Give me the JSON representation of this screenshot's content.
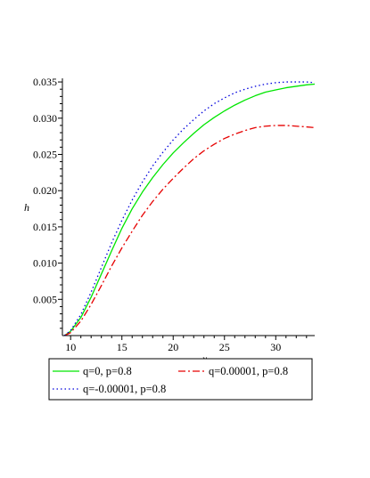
{
  "chart_data": {
    "type": "line",
    "title": "",
    "xlabel": "x",
    "ylabel": "h",
    "xlim": [
      9.2,
      33.8
    ],
    "ylim": [
      0,
      0.0355
    ],
    "xticks": [
      10,
      15,
      20,
      25,
      30
    ],
    "xtick_labels": [
      "10",
      "15",
      "20",
      "25",
      "30"
    ],
    "yticks": [
      0.005,
      0.01,
      0.015,
      0.02,
      0.025,
      0.03,
      0.035
    ],
    "ytick_labels": [
      "0.005",
      "0.010",
      "0.015",
      "0.020",
      "0.025",
      "0.030",
      "0.035"
    ],
    "grid": false,
    "legend_position": "bottom",
    "series": [
      {
        "name": "q=0, p=0.8",
        "color": "#00e600",
        "dash": "solid",
        "x": [
          9.4,
          10,
          11,
          12,
          13,
          14,
          15,
          16,
          17,
          18,
          19,
          20,
          21,
          22,
          23,
          24,
          25,
          26,
          27,
          28,
          29,
          30,
          31,
          32,
          33,
          33.8
        ],
        "y": [
          0.0,
          0.0006,
          0.0025,
          0.0053,
          0.0085,
          0.0117,
          0.0148,
          0.0175,
          0.0198,
          0.0218,
          0.0236,
          0.0252,
          0.0266,
          0.0279,
          0.0291,
          0.0301,
          0.031,
          0.0318,
          0.0325,
          0.0331,
          0.0336,
          0.0339,
          0.0342,
          0.0344,
          0.0346,
          0.0347
        ]
      },
      {
        "name": "q=0.00001, p=0.8",
        "color": "#e60000",
        "dash": "dashdot",
        "x": [
          9.4,
          10,
          11,
          12,
          13,
          14,
          15,
          16,
          17,
          18,
          19,
          20,
          21,
          22,
          23,
          24,
          25,
          26,
          27,
          28,
          29,
          30,
          31,
          32,
          33,
          33.8
        ],
        "y": [
          0.0,
          0.0004,
          0.002,
          0.0043,
          0.0069,
          0.0096,
          0.0121,
          0.0144,
          0.0166,
          0.0185,
          0.0202,
          0.0217,
          0.0231,
          0.0244,
          0.0255,
          0.0264,
          0.0272,
          0.0278,
          0.0283,
          0.0287,
          0.0289,
          0.029,
          0.029,
          0.0289,
          0.0288,
          0.0287
        ]
      },
      {
        "name": "q=-0.00001, p=0.8",
        "color": "#0000dd",
        "dash": "dotted",
        "x": [
          9.4,
          10,
          11,
          12,
          13,
          14,
          15,
          16,
          17,
          18,
          19,
          20,
          21,
          22,
          23,
          24,
          25,
          26,
          27,
          28,
          29,
          30,
          31,
          32,
          33,
          33.8
        ],
        "y": [
          0.0,
          0.0007,
          0.0029,
          0.006,
          0.0094,
          0.0128,
          0.0159,
          0.0187,
          0.0212,
          0.0234,
          0.0253,
          0.027,
          0.0285,
          0.0298,
          0.031,
          0.032,
          0.0328,
          0.0335,
          0.034,
          0.0344,
          0.0347,
          0.0349,
          0.035,
          0.035,
          0.035,
          0.0349
        ]
      }
    ]
  }
}
